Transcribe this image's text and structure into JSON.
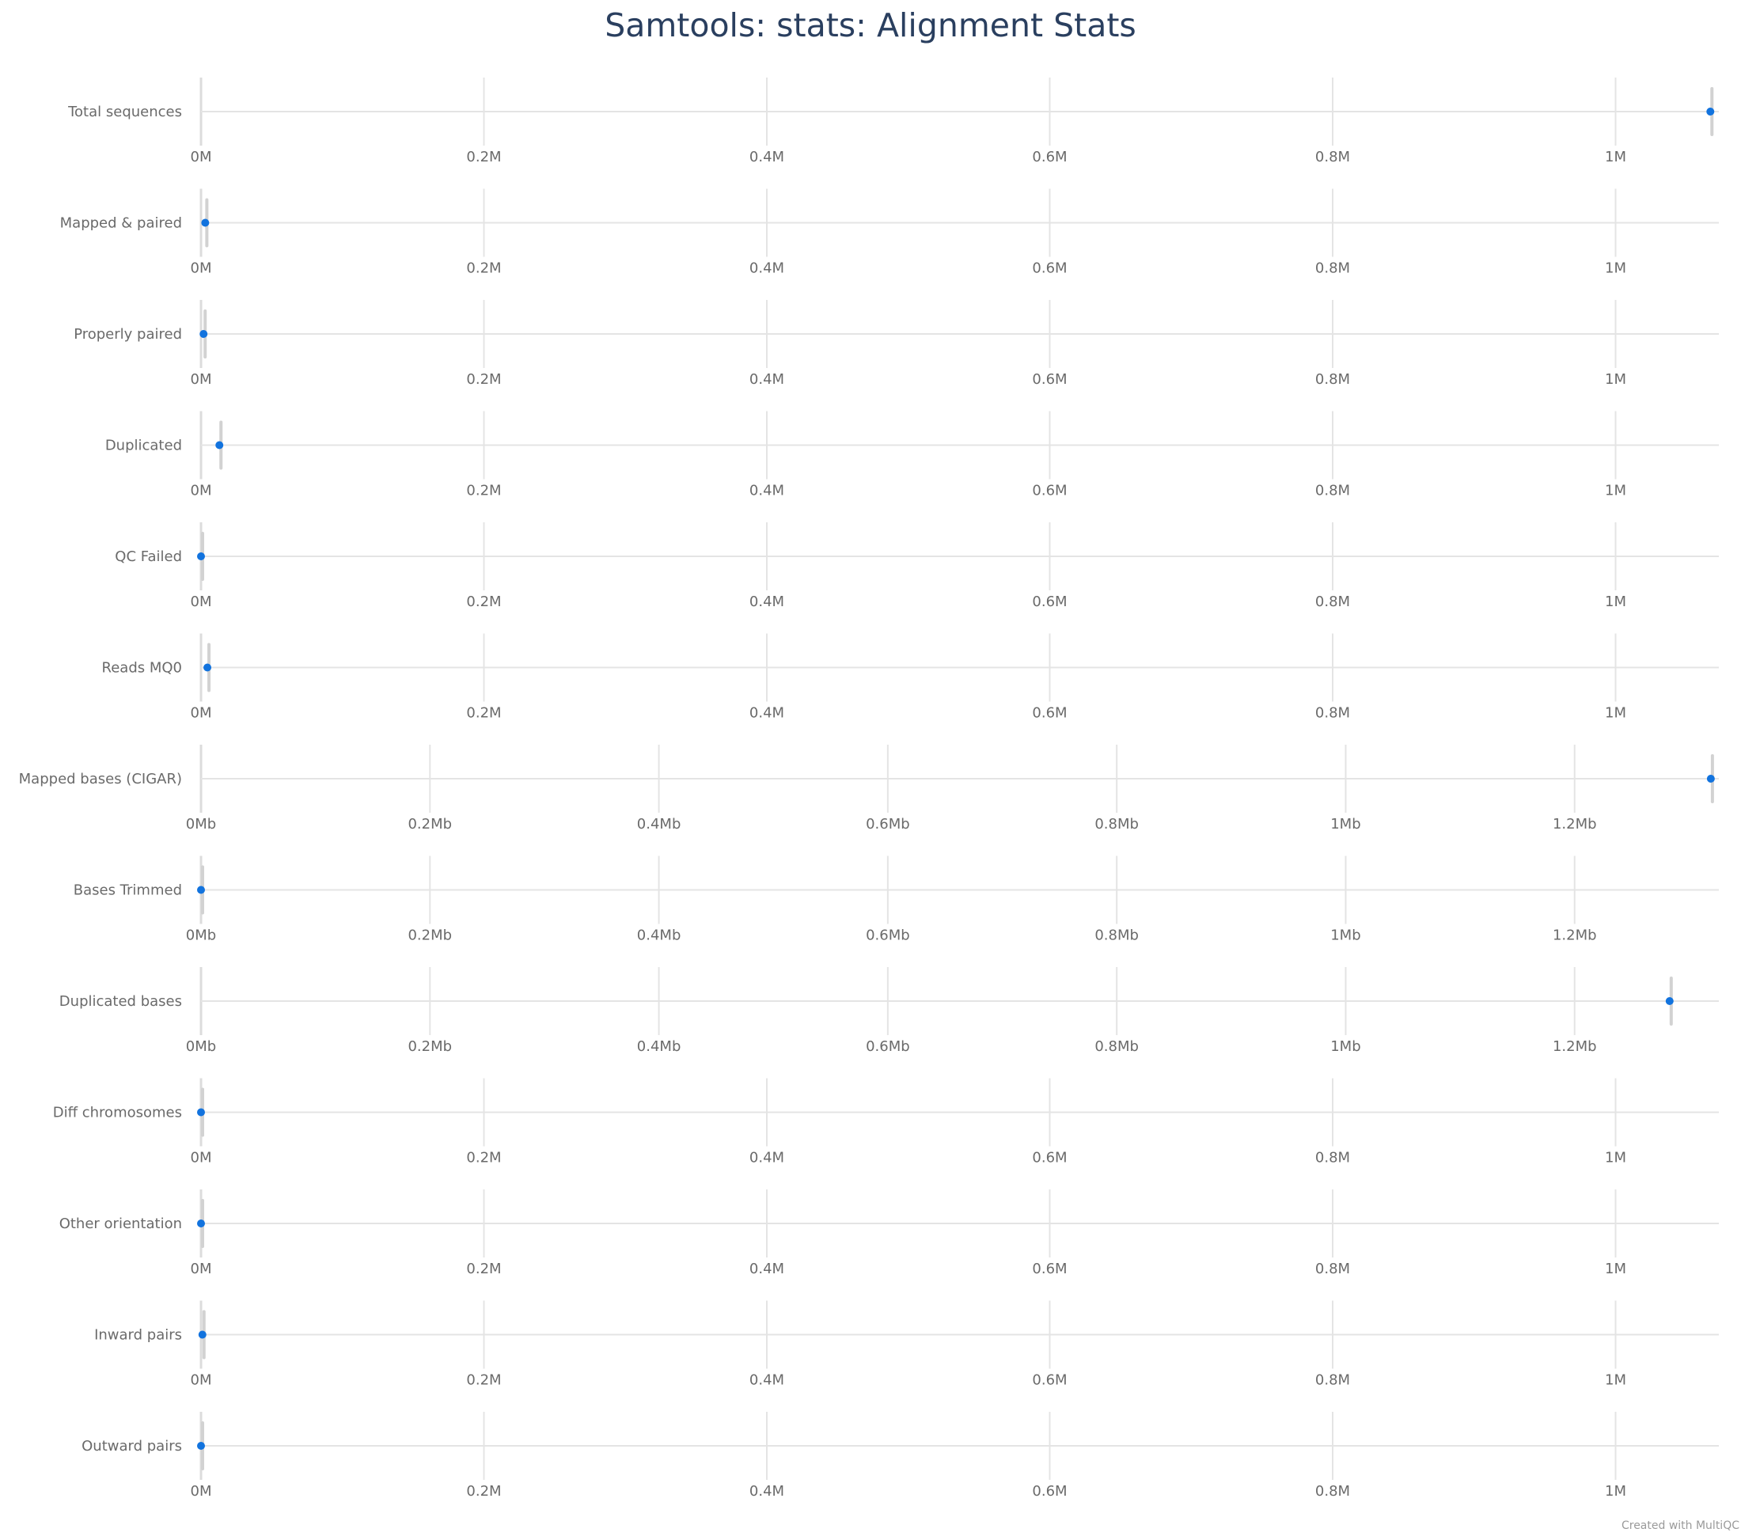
{
  "title": "Samtools: stats: Alignment Stats",
  "credit": "Created with MultiQC",
  "chart_data": {
    "type": "scatter",
    "title": "Samtools: stats: Alignment Stats",
    "colors": {
      "point": "#1273de",
      "range": "#d2d2d2",
      "grid": "#e4e4e4",
      "title": "#2a3f5f"
    },
    "grid": true,
    "rows": [
      {
        "label": "Total sequences",
        "value": 1067000,
        "range": [
          1067000,
          1067000
        ],
        "unit": "M",
        "ticks": [
          0,
          200000,
          400000,
          600000,
          800000,
          1000000
        ],
        "tick_labels": [
          "0M",
          "0.2M",
          "0.4M",
          "0.6M",
          "0.8M",
          "1M"
        ],
        "xlim": [
          0,
          1073000
        ]
      },
      {
        "label": "Mapped & paired",
        "value": 3000,
        "range": [
          3000,
          3000
        ],
        "unit": "M",
        "ticks": [
          0,
          200000,
          400000,
          600000,
          800000,
          1000000
        ],
        "tick_labels": [
          "0M",
          "0.2M",
          "0.4M",
          "0.6M",
          "0.8M",
          "1M"
        ],
        "xlim": [
          0,
          1073000
        ]
      },
      {
        "label": "Properly paired",
        "value": 1800,
        "range": [
          1800,
          1800
        ],
        "unit": "M",
        "ticks": [
          0,
          200000,
          400000,
          600000,
          800000,
          1000000
        ],
        "tick_labels": [
          "0M",
          "0.2M",
          "0.4M",
          "0.6M",
          "0.8M",
          "1M"
        ],
        "xlim": [
          0,
          1073000
        ]
      },
      {
        "label": "Duplicated",
        "value": 13000,
        "range": [
          13000,
          13000
        ],
        "unit": "M",
        "ticks": [
          0,
          200000,
          400000,
          600000,
          800000,
          1000000
        ],
        "tick_labels": [
          "0M",
          "0.2M",
          "0.4M",
          "0.6M",
          "0.8M",
          "1M"
        ],
        "xlim": [
          0,
          1073000
        ]
      },
      {
        "label": "QC Failed",
        "value": 0,
        "range": [
          0,
          0
        ],
        "unit": "M",
        "ticks": [
          0,
          200000,
          400000,
          600000,
          800000,
          1000000
        ],
        "tick_labels": [
          "0M",
          "0.2M",
          "0.4M",
          "0.6M",
          "0.8M",
          "1M"
        ],
        "xlim": [
          0,
          1073000
        ]
      },
      {
        "label": "Reads MQ0",
        "value": 4500,
        "range": [
          4500,
          4500
        ],
        "unit": "M",
        "ticks": [
          0,
          200000,
          400000,
          600000,
          800000,
          1000000
        ],
        "tick_labels": [
          "0M",
          "0.2M",
          "0.4M",
          "0.6M",
          "0.8M",
          "1M"
        ],
        "xlim": [
          0,
          1073000
        ]
      },
      {
        "label": "Mapped bases (CIGAR)",
        "value": 1319000,
        "range": [
          1319000,
          1319000
        ],
        "unit": "Mb",
        "ticks": [
          0,
          200000,
          400000,
          600000,
          800000,
          1000000,
          1200000
        ],
        "tick_labels": [
          "0Mb",
          "0.2Mb",
          "0.4Mb",
          "0.6Mb",
          "0.8Mb",
          "1Mb",
          "1.2Mb"
        ],
        "xlim": [
          0,
          1326000
        ]
      },
      {
        "label": "Bases Trimmed",
        "value": 0,
        "range": [
          0,
          0
        ],
        "unit": "Mb",
        "ticks": [
          0,
          200000,
          400000,
          600000,
          800000,
          1000000,
          1200000
        ],
        "tick_labels": [
          "0Mb",
          "0.2Mb",
          "0.4Mb",
          "0.6Mb",
          "0.8Mb",
          "1Mb",
          "1.2Mb"
        ],
        "xlim": [
          0,
          1326000
        ]
      },
      {
        "label": "Duplicated bases",
        "value": 1283000,
        "range": [
          1283000,
          1283000
        ],
        "unit": "Mb",
        "ticks": [
          0,
          200000,
          400000,
          600000,
          800000,
          1000000,
          1200000
        ],
        "tick_labels": [
          "0Mb",
          "0.2Mb",
          "0.4Mb",
          "0.6Mb",
          "0.8Mb",
          "1Mb",
          "1.2Mb"
        ],
        "xlim": [
          0,
          1326000
        ]
      },
      {
        "label": "Diff chromosomes",
        "value": 0,
        "range": [
          0,
          0
        ],
        "unit": "M",
        "ticks": [
          0,
          200000,
          400000,
          600000,
          800000,
          1000000
        ],
        "tick_labels": [
          "0M",
          "0.2M",
          "0.4M",
          "0.6M",
          "0.8M",
          "1M"
        ],
        "xlim": [
          0,
          1073000
        ]
      },
      {
        "label": "Other orientation",
        "value": 0,
        "range": [
          0,
          0
        ],
        "unit": "M",
        "ticks": [
          0,
          200000,
          400000,
          600000,
          800000,
          1000000
        ],
        "tick_labels": [
          "0M",
          "0.2M",
          "0.4M",
          "0.6M",
          "0.8M",
          "1M"
        ],
        "xlim": [
          0,
          1073000
        ]
      },
      {
        "label": "Inward pairs",
        "value": 1000,
        "range": [
          1000,
          1000
        ],
        "unit": "M",
        "ticks": [
          0,
          200000,
          400000,
          600000,
          800000,
          1000000
        ],
        "tick_labels": [
          "0M",
          "0.2M",
          "0.4M",
          "0.6M",
          "0.8M",
          "1M"
        ],
        "xlim": [
          0,
          1073000
        ]
      },
      {
        "label": "Outward pairs",
        "value": 0,
        "range": [
          0,
          0
        ],
        "unit": "M",
        "ticks": [
          0,
          200000,
          400000,
          600000,
          800000,
          1000000
        ],
        "tick_labels": [
          "0M",
          "0.2M",
          "0.4M",
          "0.6M",
          "0.8M",
          "1M"
        ],
        "xlim": [
          0,
          1073000
        ]
      }
    ]
  }
}
